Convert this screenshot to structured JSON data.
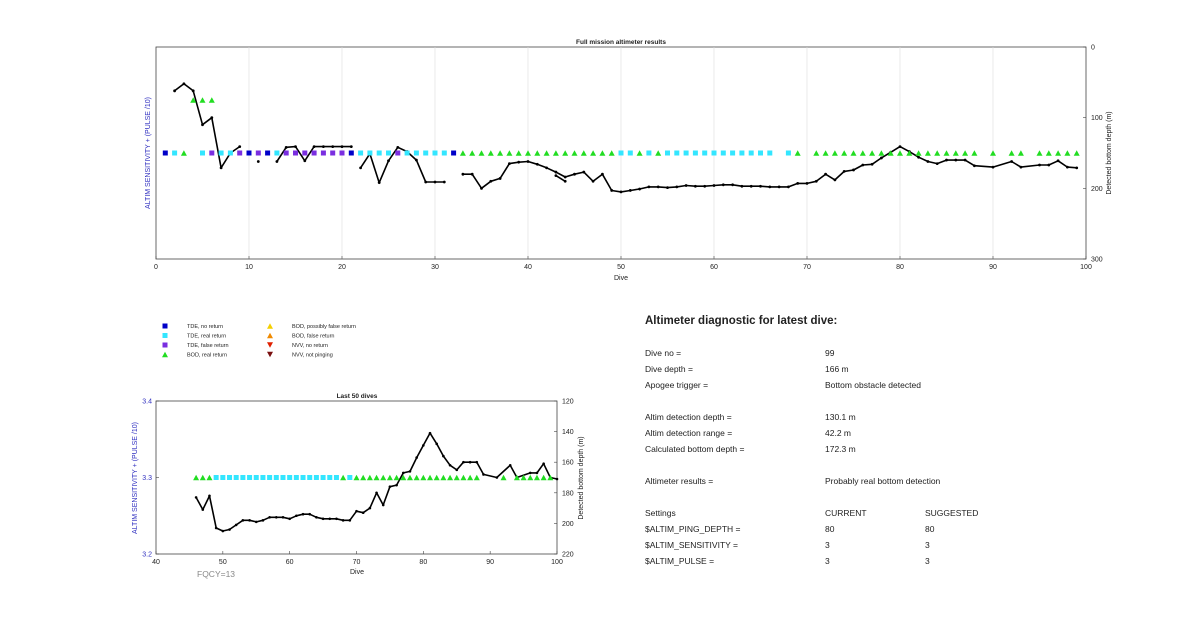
{
  "top_chart": {
    "title": "Full mission altimeter results",
    "xlabel": "Dive",
    "ylabel_left": "ALTIM SENSITIVITY + (PULSE /10)",
    "ylabel_right": "Detected bottom depth (m)"
  },
  "bottom_chart": {
    "title": "Last 50 dives",
    "xlabel": "Dive",
    "ylabel_left": "ALTIM SENSITIVITY + (PULSE /10)",
    "ylabel_right": "Detected bottom depth (m)",
    "fqcy_label": "FQCY=13"
  },
  "legend": [
    {
      "label": "TDE, no return",
      "symbol": "square",
      "color": "#0000c8"
    },
    {
      "label": "TDE, real return",
      "symbol": "square",
      "color": "#33e6ff"
    },
    {
      "label": "TDE, false return",
      "symbol": "square",
      "color": "#7a2ee0"
    },
    {
      "label": "BOD, real return",
      "symbol": "triangle-up",
      "color": "#22dd22"
    },
    {
      "label": "BOD, possibly false return",
      "symbol": "triangle-up",
      "color": "#f5d000"
    },
    {
      "label": "BOD, false return",
      "symbol": "triangle-up",
      "color": "#f08a00"
    },
    {
      "label": "NVV, no return",
      "symbol": "triangle-down",
      "color": "#e02000"
    },
    {
      "label": "NVV, not pinging",
      "symbol": "triangle-down",
      "color": "#7a1010"
    }
  ],
  "diagnostic": {
    "title": "Altimeter diagnostic for latest dive:",
    "dive_no_label": "Dive no =",
    "dive_no": "99",
    "dive_depth_label": "Dive depth =",
    "dive_depth": "166 m",
    "apogee_label": "Apogee trigger =",
    "apogee": "Bottom obstacle detected",
    "detect_depth_label": "Altim detection depth =",
    "detect_depth": "130.1 m",
    "detect_range_label": "Altim detection range =",
    "detect_range": "42.2 m",
    "calc_bottom_label": "Calculated bottom depth =",
    "calc_bottom": "172.3 m",
    "results_label": "Altimeter results =",
    "results": "Probably real bottom detection",
    "settings_label": "Settings",
    "current_label": "CURRENT",
    "suggested_label": "SUGGESTED",
    "ping_depth_label": "$ALTIM_PING_DEPTH =",
    "ping_depth_current": "80",
    "ping_depth_suggested": "80",
    "sensitivity_label": "$ALTIM_SENSITIVITY =",
    "sensitivity_current": "3",
    "sensitivity_suggested": "3",
    "pulse_label": "$ALTIM_PULSE =",
    "pulse_current": "3",
    "pulse_suggested": "3"
  },
  "chart_data": [
    {
      "type": "scatter",
      "title": "Full mission altimeter results",
      "xlabel": "Dive",
      "ylabel_left": "ALTIM SENSITIVITY + (PULSE /10)",
      "ylabel_right": "Detected bottom depth (m)",
      "xlim": [
        0,
        100
      ],
      "xticks": [
        0,
        10,
        20,
        30,
        40,
        50,
        60,
        70,
        80,
        90,
        100
      ],
      "ylim_left": [
        3.1,
        3.5
      ],
      "ylim_right": [
        0,
        300
      ],
      "yticks_right": [
        0,
        100,
        200,
        300
      ],
      "grid": "vertical",
      "depth_line": {
        "segments": [
          [
            [
              2,
              62
            ],
            [
              3,
              52
            ],
            [
              4,
              62
            ],
            [
              5,
              110
            ],
            [
              6,
              100
            ],
            [
              7,
              171
            ],
            [
              8,
              150
            ],
            [
              9,
              141
            ]
          ],
          [
            [
              11,
              162
            ]
          ],
          [
            [
              13,
              162
            ],
            [
              14,
              142
            ],
            [
              15,
              141
            ],
            [
              16,
              161
            ],
            [
              17,
              141
            ],
            [
              18,
              141
            ],
            [
              19,
              141
            ],
            [
              20,
              141
            ],
            [
              21,
              141
            ]
          ],
          [
            [
              22,
              171
            ],
            [
              23,
              151
            ],
            [
              24,
              192
            ],
            [
              25,
              161
            ],
            [
              26,
              142
            ],
            [
              27,
              148
            ],
            [
              28,
              160
            ],
            [
              29,
              191
            ],
            [
              30,
              191
            ],
            [
              31,
              191
            ]
          ],
          [
            [
              33,
              180
            ],
            [
              34,
              180
            ],
            [
              35,
              200
            ],
            [
              36,
              190
            ],
            [
              37,
              186
            ],
            [
              38,
              165
            ],
            [
              39,
              163
            ],
            [
              40,
              162
            ],
            [
              41,
              166
            ],
            [
              42,
              171
            ],
            [
              43,
              177
            ],
            [
              44,
              184
            ],
            [
              45,
              180
            ],
            [
              46,
              177
            ],
            [
              47,
              190
            ],
            [
              48,
              180
            ],
            [
              49,
              203
            ],
            [
              50,
              205
            ],
            [
              51,
              203
            ],
            [
              52,
              201
            ],
            [
              53,
              198
            ],
            [
              54,
              198
            ],
            [
              55,
              199
            ],
            [
              56,
              198
            ],
            [
              57,
              196
            ],
            [
              58,
              197
            ],
            [
              59,
              197
            ],
            [
              60,
              196
            ],
            [
              61,
              195
            ],
            [
              62,
              195
            ],
            [
              63,
              197
            ],
            [
              64,
              197
            ],
            [
              65,
              197
            ],
            [
              66,
              198
            ],
            [
              67,
              198
            ],
            [
              68,
              198
            ],
            [
              69,
              193
            ],
            [
              70,
              193
            ],
            [
              71,
              190
            ],
            [
              72,
              180
            ],
            [
              73,
              188
            ],
            [
              74,
              176
            ],
            [
              75,
              174
            ],
            [
              76,
              167
            ],
            [
              77,
              166
            ],
            [
              78,
              157
            ],
            [
              79,
              149
            ],
            [
              80,
              141
            ],
            [
              81,
              148
            ],
            [
              82,
              156
            ],
            [
              83,
              162
            ],
            [
              84,
              165
            ],
            [
              85,
              160
            ],
            [
              86,
              160
            ],
            [
              87,
              160
            ],
            [
              88,
              168
            ],
            [
              90,
              170
            ],
            [
              92,
              162
            ],
            [
              93,
              170
            ],
            [
              95,
              167
            ],
            [
              96,
              167
            ],
            [
              97,
              161
            ],
            [
              98,
              170
            ],
            [
              99,
              171
            ]
          ],
          [
            [
              43,
              182
            ],
            [
              44,
              190
            ]
          ]
        ]
      },
      "series": [
        {
          "name": "TDE, no return",
          "marker": "square",
          "color": "#0000c8",
          "level": 3.3,
          "x": [
            1,
            10,
            12,
            21,
            32
          ]
        },
        {
          "name": "TDE, real return",
          "marker": "square",
          "color": "#33e6ff",
          "level": 3.3,
          "x": [
            2,
            5,
            7,
            8,
            13,
            22,
            23,
            24,
            25,
            27,
            28,
            29,
            30,
            31,
            50,
            51,
            53,
            55,
            56,
            57,
            58,
            59,
            60,
            61,
            62,
            63,
            64,
            65,
            66,
            68
          ]
        },
        {
          "name": "TDE, false return",
          "marker": "square",
          "color": "#7a2ee0",
          "level": 3.3,
          "x": [
            6,
            9,
            11,
            14,
            15,
            16,
            17,
            18,
            19,
            20,
            26
          ]
        },
        {
          "name": "BOD, real return",
          "marker": "triangle-up",
          "color": "#22dd22",
          "level": 3.3,
          "x": [
            3,
            33,
            34,
            35,
            36,
            37,
            38,
            39,
            40,
            41,
            42,
            43,
            44,
            45,
            46,
            47,
            48,
            49,
            52,
            54,
            69,
            71,
            72,
            73,
            74,
            75,
            76,
            77,
            78,
            79,
            80,
            81,
            82,
            83,
            84,
            85,
            86,
            87,
            88,
            90,
            92,
            93,
            95,
            96,
            97,
            98,
            99
          ]
        },
        {
          "name": "BOD, real return",
          "marker": "triangle-up",
          "color": "#22dd22",
          "level": 3.4,
          "x": [
            4,
            5,
            6
          ]
        }
      ]
    },
    {
      "type": "scatter",
      "title": "Last 50 dives",
      "xlabel": "Dive",
      "ylabel_left": "ALTIM SENSITIVITY + (PULSE /10)",
      "ylabel_right": "Detected bottom depth (m)",
      "xlim": [
        40,
        100
      ],
      "xticks": [
        40,
        50,
        60,
        70,
        80,
        90,
        100
      ],
      "ylim_left": [
        3.2,
        3.4
      ],
      "yticks_left": [
        3.2,
        3.3,
        3.4
      ],
      "ylim_right": [
        120,
        220
      ],
      "yticks_right": [
        120,
        140,
        160,
        180,
        200,
        220
      ],
      "annotation": "FQCY=13",
      "depth_line": {
        "segments": [
          [
            [
              46,
              183
            ],
            [
              47,
              191
            ],
            [
              48,
              182
            ],
            [
              49,
              203
            ],
            [
              50,
              205
            ],
            [
              51,
              204
            ],
            [
              52,
              201
            ],
            [
              53,
              198
            ],
            [
              54,
              198
            ],
            [
              55,
              199
            ],
            [
              56,
              198
            ],
            [
              57,
              196
            ],
            [
              58,
              196
            ],
            [
              59,
              196
            ],
            [
              60,
              197
            ],
            [
              61,
              195
            ],
            [
              62,
              194
            ],
            [
              63,
              194
            ],
            [
              64,
              196
            ],
            [
              65,
              197
            ],
            [
              66,
              197
            ],
            [
              67,
              197
            ],
            [
              68,
              198
            ],
            [
              69,
              198
            ],
            [
              70,
              192
            ],
            [
              71,
              193
            ],
            [
              72,
              190
            ],
            [
              73,
              180
            ],
            [
              74,
              188
            ],
            [
              75,
              176
            ],
            [
              76,
              175
            ],
            [
              77,
              167
            ],
            [
              78,
              166
            ],
            [
              79,
              157
            ],
            [
              80,
              149
            ],
            [
              81,
              141
            ],
            [
              82,
              148
            ],
            [
              83,
              156
            ],
            [
              84,
              162
            ],
            [
              85,
              165
            ],
            [
              86,
              160
            ],
            [
              87,
              160
            ],
            [
              88,
              160
            ],
            [
              89,
              168
            ],
            [
              91,
              170
            ],
            [
              93,
              162
            ],
            [
              94,
              170
            ],
            [
              96,
              167
            ],
            [
              97,
              167
            ],
            [
              98,
              161
            ],
            [
              99,
              170
            ],
            [
              100,
              171
            ]
          ]
        ]
      },
      "series": [
        {
          "name": "BOD, real return",
          "marker": "triangle-up",
          "color": "#22dd22",
          "level": 3.3,
          "x": [
            46,
            47,
            48,
            68,
            70,
            71,
            72,
            73,
            74,
            75,
            76,
            77,
            78,
            79,
            80,
            81,
            82,
            83,
            84,
            85,
            86,
            87,
            88,
            92,
            94,
            95,
            96,
            97,
            98,
            99
          ]
        },
        {
          "name": "TDE, real return",
          "marker": "square",
          "color": "#33e6ff",
          "level": 3.3,
          "x": [
            49,
            50,
            51,
            52,
            53,
            54,
            55,
            56,
            57,
            58,
            59,
            60,
            61,
            62,
            63,
            64,
            65,
            66,
            67,
            69
          ]
        }
      ]
    }
  ]
}
